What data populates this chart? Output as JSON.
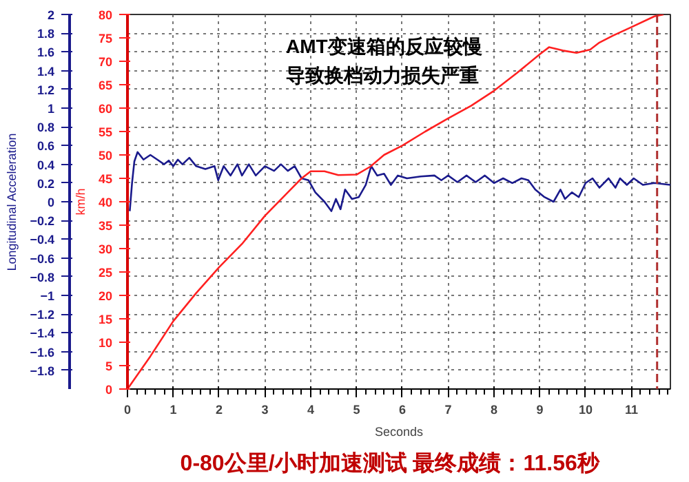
{
  "chart_data": {
    "type": "line",
    "xlabel": "Seconds",
    "ylabel": "Longitudinal Acceleration",
    "y2label": "km/h",
    "xlim": [
      0,
      11.85
    ],
    "xticks": [
      0,
      1,
      2,
      3,
      4,
      5,
      6,
      7,
      8,
      9,
      10,
      11
    ],
    "ylim": [
      -2,
      2
    ],
    "yticks": [
      -1.8,
      -1.6,
      -1.4,
      -1.2,
      -1,
      -0.8,
      -0.6,
      -0.4,
      -0.2,
      0,
      0.2,
      0.4,
      0.6,
      0.8,
      1,
      1.2,
      1.4,
      1.6,
      1.8,
      2
    ],
    "y2lim": [
      0,
      80
    ],
    "y2ticks": [
      0,
      5,
      10,
      15,
      20,
      25,
      30,
      35,
      40,
      45,
      50,
      55,
      60,
      65,
      70,
      75,
      80
    ],
    "grid": true,
    "series": [
      {
        "color": "#1a1a8c",
        "x": [
          0.05,
          0.1,
          0.15,
          0.22,
          0.35,
          0.5,
          0.65,
          0.8,
          0.9,
          1.0,
          1.1,
          1.2,
          1.35,
          1.5,
          1.7,
          1.9,
          1.98,
          2.1,
          2.25,
          2.4,
          2.5,
          2.65,
          2.8,
          3.0,
          3.2,
          3.35,
          3.5,
          3.65,
          3.8,
          3.95,
          4.1,
          4.3,
          4.45,
          4.55,
          4.65,
          4.75,
          4.9,
          5.05,
          5.2,
          5.32,
          5.45,
          5.6,
          5.75,
          5.9,
          6.1,
          6.4,
          6.7,
          6.85,
          7.0,
          7.2,
          7.4,
          7.6,
          7.8,
          8.0,
          8.2,
          8.4,
          8.6,
          8.75,
          8.9,
          9.1,
          9.3,
          9.45,
          9.55,
          9.7,
          9.85,
          10.0,
          10.15,
          10.3,
          10.5,
          10.65,
          10.75,
          10.9,
          11.05,
          11.25,
          11.5,
          11.85
        ],
        "values": [
          -0.1,
          0.2,
          0.43,
          0.53,
          0.45,
          0.5,
          0.45,
          0.4,
          0.44,
          0.38,
          0.45,
          0.4,
          0.47,
          0.38,
          0.35,
          0.38,
          0.23,
          0.38,
          0.28,
          0.4,
          0.28,
          0.4,
          0.28,
          0.38,
          0.33,
          0.4,
          0.33,
          0.38,
          0.25,
          0.23,
          0.1,
          0,
          -0.1,
          0.03,
          -0.08,
          0.13,
          0.03,
          0.05,
          0.18,
          0.38,
          0.28,
          0.3,
          0.18,
          0.28,
          0.25,
          0.27,
          0.28,
          0.23,
          0.28,
          0.21,
          0.28,
          0.21,
          0.28,
          0.2,
          0.25,
          0.2,
          0.25,
          0.23,
          0.13,
          0.05,
          0,
          0.13,
          0.03,
          0.1,
          0.05,
          0.2,
          0.25,
          0.15,
          0.25,
          0.15,
          0.25,
          0.18,
          0.25,
          0.18,
          0.2,
          0.18
        ]
      },
      {
        "color": "#ff2020",
        "axis": "y2",
        "x": [
          0,
          0.5,
          1,
          1.5,
          2,
          2.5,
          3,
          3.5,
          3.8,
          4,
          4.3,
          4.6,
          5,
          5.3,
          5.6,
          6,
          6.5,
          7,
          7.5,
          8,
          8.5,
          9,
          9.2,
          9.5,
          9.8,
          10.1,
          10.3,
          10.6,
          11,
          11.5,
          11.7
        ],
        "values": [
          0,
          7,
          14.5,
          20.5,
          26,
          31,
          37,
          42,
          45,
          46.5,
          46.5,
          45.7,
          45.8,
          47.5,
          50,
          52,
          55,
          57.8,
          60.5,
          63.7,
          67.5,
          71.5,
          73,
          72.3,
          71.8,
          72.5,
          74,
          75.5,
          77.3,
          79.6,
          80
        ]
      }
    ],
    "ref_lines": [
      {
        "axis": "x",
        "value": 11.56,
        "color": "#b03030",
        "line_style": "dashed"
      }
    ],
    "annotations": [
      "AMT变速箱的反应较慢导致换档动力损失严重",
      "0-80公里/小时加速测试    最终成绩：11.56秒"
    ]
  }
}
